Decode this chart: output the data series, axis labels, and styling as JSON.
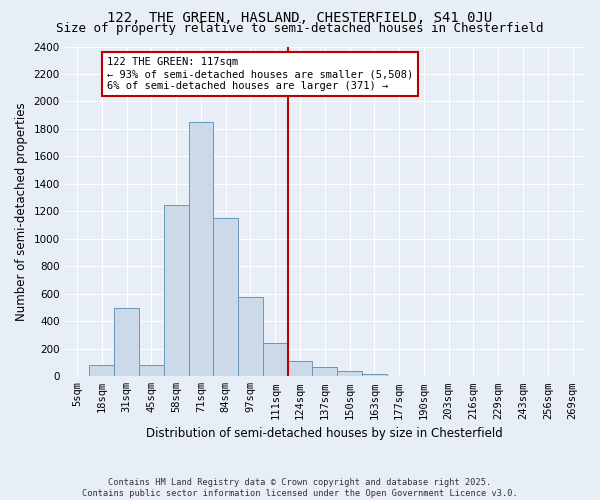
{
  "title1": "122, THE GREEN, HASLAND, CHESTERFIELD, S41 0JU",
  "title2": "Size of property relative to semi-detached houses in Chesterfield",
  "xlabel": "Distribution of semi-detached houses by size in Chesterfield",
  "ylabel": "Number of semi-detached properties",
  "footnote": "Contains HM Land Registry data © Crown copyright and database right 2025.\nContains public sector information licensed under the Open Government Licence v3.0.",
  "categories": [
    "5sqm",
    "18sqm",
    "31sqm",
    "45sqm",
    "58sqm",
    "71sqm",
    "84sqm",
    "97sqm",
    "111sqm",
    "124sqm",
    "137sqm",
    "150sqm",
    "163sqm",
    "177sqm",
    "190sqm",
    "203sqm",
    "216sqm",
    "229sqm",
    "243sqm",
    "256sqm",
    "269sqm"
  ],
  "values": [
    5,
    80,
    500,
    80,
    1250,
    1850,
    1150,
    580,
    240,
    115,
    65,
    40,
    15,
    5,
    3,
    2,
    1,
    1,
    0,
    0,
    0
  ],
  "bar_color": "#ccd9e8",
  "bar_edge_color": "#6699bb",
  "vline_index": 8.5,
  "property_label": "122 THE GREEN: 117sqm",
  "pct_smaller": 93,
  "n_smaller": 5508,
  "pct_larger": 6,
  "n_larger": 371,
  "vline_color": "#bb0000",
  "ylim": [
    0,
    2400
  ],
  "yticks": [
    0,
    200,
    400,
    600,
    800,
    1000,
    1200,
    1400,
    1600,
    1800,
    2000,
    2200,
    2400
  ],
  "bg_color": "#e8eef5",
  "grid_color": "#ffffff",
  "title_fontsize": 10,
  "subtitle_fontsize": 9,
  "axis_label_fontsize": 8.5,
  "tick_fontsize": 7.5,
  "ann_fontsize": 7.5
}
